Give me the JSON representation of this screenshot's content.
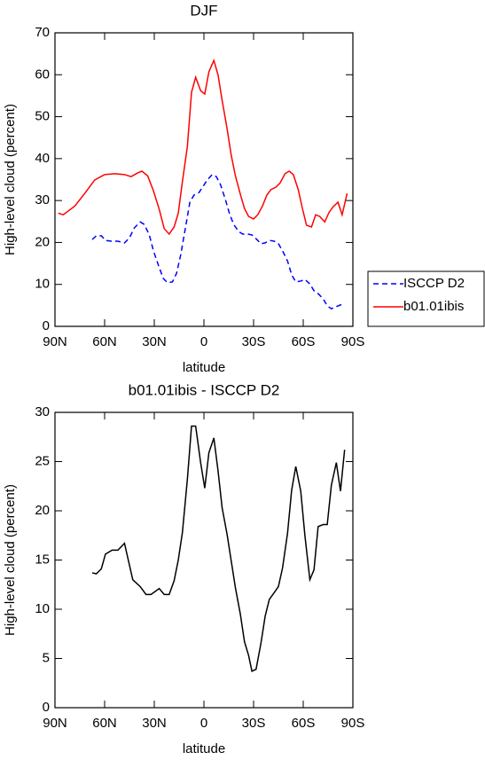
{
  "chart_data": [
    {
      "type": "line",
      "title": "DJF",
      "xlabel": "latitude",
      "ylabel": "High-level cloud (percent)",
      "xlim": [
        90,
        -90
      ],
      "xticks": [
        {
          "value": 90,
          "label": "90N"
        },
        {
          "value": 60,
          "label": "60N"
        },
        {
          "value": 30,
          "label": "30N"
        },
        0,
        {
          "value": -30,
          "label": "30S"
        },
        {
          "value": -60,
          "label": "60S"
        },
        {
          "value": -90,
          "label": "90S"
        }
      ],
      "ylim": [
        0,
        70
      ],
      "yticks": [
        0,
        10,
        20,
        30,
        40,
        50,
        60,
        70
      ],
      "legend": "right",
      "series": [
        {
          "name": "ISCCP D2",
          "color": "#0000ff",
          "dashed": true,
          "x": [
            67.5,
            65,
            62,
            59.5,
            55.5,
            52,
            48,
            45,
            42,
            38.5,
            36,
            33,
            30.5,
            27,
            24.5,
            22,
            19,
            16.5,
            14,
            11,
            8.5,
            6,
            3,
            0.5,
            -2,
            -5,
            -7.5,
            -10,
            -13,
            -15.5,
            -18,
            -21,
            -23.5,
            -26.5,
            -29,
            -31.5,
            -34.5,
            -37,
            -39.5,
            -42.5,
            -45,
            -47.5,
            -50.5,
            -53,
            -55.5,
            -58.5,
            -61,
            -64,
            -66.5,
            -69,
            -72,
            -74.5,
            -77,
            -80,
            -82.5,
            -85
          ],
          "values": [
            20.7,
            21.6,
            21.6,
            20.5,
            20.3,
            20.3,
            19.9,
            21.1,
            23.5,
            24.9,
            24.3,
            21.8,
            18,
            14,
            11.4,
            10.4,
            10.6,
            12.7,
            17.1,
            23.9,
            29.6,
            31.3,
            31.9,
            33.4,
            34.9,
            36.2,
            35.7,
            33.8,
            30.2,
            26.8,
            24.3,
            22.6,
            22,
            22,
            21.8,
            20.9,
            19.7,
            19.9,
            20.5,
            20.3,
            19.7,
            18,
            15.6,
            12.3,
            10.6,
            10.8,
            11.2,
            10.1,
            8.5,
            7.8,
            6.6,
            4.9,
            4.2,
            4.7,
            5.1,
            5.5
          ]
        },
        {
          "name": "b01.01ibis",
          "color": "#ff0000",
          "dashed": false,
          "x": [
            88,
            85,
            78,
            72,
            66,
            60,
            54,
            48,
            44,
            40,
            37.5,
            34,
            30.5,
            27,
            24,
            21,
            18,
            15.5,
            13,
            10,
            7.5,
            5,
            2,
            -0.5,
            -3,
            -6,
            -8.5,
            -11,
            -14,
            -16.5,
            -19,
            -22,
            -24.5,
            -27,
            -30,
            -32.5,
            -35.5,
            -38,
            -40.5,
            -43.5,
            -46,
            -49,
            -51.5,
            -54,
            -57,
            -59.5,
            -62,
            -65,
            -67.5,
            -70,
            -73,
            -75.5,
            -78,
            -81,
            -83.5,
            -86.5
          ],
          "values": [
            27,
            26.6,
            28.7,
            31.7,
            34.9,
            36.2,
            36.4,
            36.2,
            35.7,
            36.6,
            37,
            35.9,
            32.3,
            27.9,
            23.3,
            22,
            23.7,
            27,
            34.5,
            42.9,
            55.8,
            59.4,
            56.2,
            55.4,
            60.7,
            63.4,
            60,
            53.9,
            47.1,
            40.8,
            35.9,
            31.5,
            28.1,
            26.2,
            25.6,
            26.6,
            28.8,
            31.3,
            32.6,
            33.2,
            34.2,
            36.4,
            37,
            36.2,
            32.6,
            28.1,
            24.1,
            23.7,
            26.6,
            26.2,
            24.9,
            27.1,
            28.5,
            29.6,
            26.6,
            31.7
          ]
        }
      ]
    },
    {
      "type": "line",
      "title": "b01.01ibis - ISCCP D2",
      "xlabel": "latitude",
      "ylabel": "High-level cloud (percent)",
      "xlim": [
        90,
        -90
      ],
      "xticks": [
        {
          "value": 90,
          "label": "90N"
        },
        {
          "value": 60,
          "label": "60N"
        },
        {
          "value": 30,
          "label": "30N"
        },
        0,
        {
          "value": -30,
          "label": "30S"
        },
        {
          "value": -60,
          "label": "60S"
        },
        {
          "value": -90,
          "label": "90S"
        }
      ],
      "ylim": [
        0,
        30
      ],
      "yticks": [
        0,
        5,
        10,
        15,
        20,
        25,
        30
      ],
      "series": [
        {
          "color": "#000000",
          "dashed": false,
          "x": [
            67.5,
            65,
            62,
            59.5,
            55.5,
            52,
            48,
            43,
            38.5,
            35,
            32,
            27,
            24,
            21,
            18,
            15.5,
            13,
            10,
            7.5,
            5,
            2,
            -0.5,
            -3,
            -6,
            -8.5,
            -11,
            -14,
            -16.5,
            -19,
            -22,
            -24.5,
            -27,
            -29,
            -31.5,
            -34.5,
            -37,
            -39.5,
            -42.5,
            -45,
            -47.5,
            -50.5,
            -53,
            -55.5,
            -58.5,
            -61,
            -64,
            -66.5,
            -69,
            -72,
            -74.5,
            -77,
            -80,
            -82.5,
            -85
          ],
          "values": [
            13.7,
            13.6,
            14.1,
            15.6,
            16,
            16,
            16.7,
            13,
            12.3,
            11.5,
            11.5,
            12.1,
            11.5,
            11.5,
            12.9,
            15,
            17.8,
            23.2,
            28.6,
            28.6,
            24.9,
            22.3,
            25.9,
            27.4,
            24.1,
            20.3,
            17.6,
            14.9,
            12.2,
            9.5,
            6.7,
            5.3,
            3.7,
            3.9,
            6.6,
            9.3,
            11,
            11.7,
            12.3,
            14.2,
            17.7,
            22.1,
            24.5,
            22,
            17.5,
            13,
            14,
            18.4,
            18.6,
            18.6,
            22.6,
            24.9,
            22,
            26.2
          ]
        }
      ]
    }
  ]
}
